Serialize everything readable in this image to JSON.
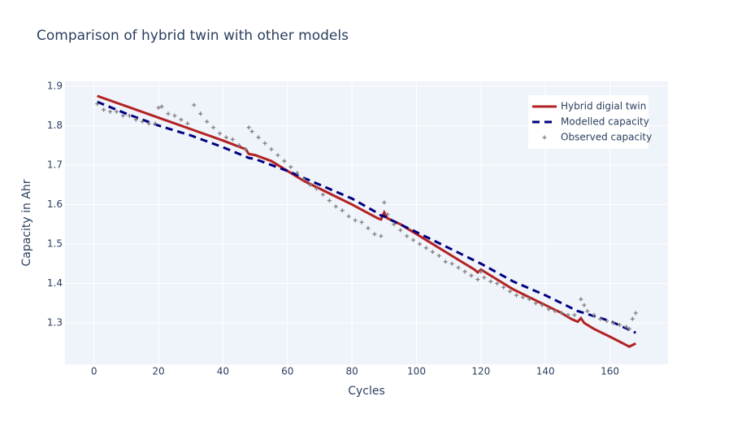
{
  "chart_data": {
    "type": "line",
    "title": "Comparison of hybrid twin with other models",
    "x_label": "Cycles",
    "y_label": "Capacity in Ahr",
    "xlim": [
      -9,
      178
    ],
    "ylim": [
      1.195,
      1.912
    ],
    "xticks": [
      0,
      20,
      40,
      60,
      80,
      100,
      120,
      140,
      160
    ],
    "yticks": [
      1.3,
      1.4,
      1.5,
      1.6,
      1.7,
      1.8,
      1.9
    ],
    "grid": true,
    "legend": "top-right",
    "series": [
      {
        "name": "Hybrid digial twin",
        "color": "#b22222",
        "mode": "lines",
        "line_style": "solid",
        "x": [
          1,
          20,
          40,
          47,
          48,
          50,
          55,
          60,
          65,
          70,
          75,
          80,
          85,
          88,
          89,
          90,
          91,
          95,
          100,
          105,
          110,
          115,
          118,
          119,
          120,
          121,
          125,
          130,
          135,
          140,
          145,
          148,
          150,
          151,
          152,
          155,
          160,
          166,
          168
        ],
        "values": [
          1.875,
          1.82,
          1.762,
          1.74,
          1.728,
          1.725,
          1.71,
          1.685,
          1.66,
          1.64,
          1.62,
          1.6,
          1.578,
          1.565,
          1.562,
          1.58,
          1.565,
          1.55,
          1.525,
          1.5,
          1.475,
          1.45,
          1.435,
          1.428,
          1.435,
          1.43,
          1.41,
          1.385,
          1.365,
          1.345,
          1.325,
          1.31,
          1.303,
          1.312,
          1.3,
          1.285,
          1.265,
          1.24,
          1.248
        ]
      },
      {
        "name": "Modelled capacity",
        "color": "#000080",
        "mode": "lines",
        "line_style": "dash",
        "x": [
          1,
          10,
          20,
          30,
          40,
          48,
          50,
          60,
          70,
          80,
          88,
          89,
          90,
          91,
          100,
          110,
          120,
          130,
          140,
          150,
          160,
          168
        ],
        "values": [
          1.86,
          1.83,
          1.8,
          1.775,
          1.745,
          1.718,
          1.715,
          1.685,
          1.65,
          1.615,
          1.578,
          1.572,
          1.57,
          1.565,
          1.53,
          1.49,
          1.45,
          1.405,
          1.37,
          1.33,
          1.305,
          1.275
        ]
      },
      {
        "name": "Observed capacity",
        "color": "#808080",
        "mode": "markers",
        "symbol": "cross",
        "x": [
          1,
          3,
          5,
          7,
          9,
          11,
          13,
          15,
          17,
          19,
          20,
          21,
          23,
          25,
          27,
          29,
          31,
          33,
          35,
          37,
          39,
          41,
          43,
          45,
          47,
          48,
          49,
          51,
          53,
          55,
          57,
          59,
          61,
          63,
          65,
          67,
          69,
          71,
          73,
          75,
          77,
          79,
          81,
          83,
          85,
          87,
          89,
          90,
          91,
          93,
          95,
          97,
          99,
          101,
          103,
          105,
          107,
          109,
          111,
          113,
          115,
          117,
          119,
          120,
          121,
          123,
          125,
          127,
          129,
          131,
          133,
          135,
          137,
          139,
          141,
          143,
          145,
          147,
          149,
          151,
          152,
          153,
          155,
          157,
          159,
          161,
          163,
          165,
          166,
          167,
          168
        ],
        "values": [
          1.855,
          1.84,
          1.835,
          1.835,
          1.825,
          1.825,
          1.815,
          1.81,
          1.805,
          1.805,
          1.845,
          1.848,
          1.83,
          1.825,
          1.815,
          1.805,
          1.852,
          1.83,
          1.81,
          1.795,
          1.78,
          1.77,
          1.765,
          1.75,
          1.74,
          1.795,
          1.785,
          1.77,
          1.755,
          1.74,
          1.725,
          1.71,
          1.695,
          1.68,
          1.665,
          1.65,
          1.64,
          1.625,
          1.61,
          1.595,
          1.585,
          1.57,
          1.56,
          1.555,
          1.54,
          1.525,
          1.52,
          1.605,
          1.575,
          1.55,
          1.535,
          1.52,
          1.51,
          1.5,
          1.49,
          1.48,
          1.47,
          1.455,
          1.45,
          1.44,
          1.43,
          1.42,
          1.41,
          1.43,
          1.415,
          1.405,
          1.4,
          1.39,
          1.38,
          1.37,
          1.365,
          1.36,
          1.35,
          1.345,
          1.335,
          1.33,
          1.325,
          1.32,
          1.32,
          1.36,
          1.345,
          1.33,
          1.32,
          1.31,
          1.305,
          1.3,
          1.295,
          1.29,
          1.285,
          1.31,
          1.325
        ]
      }
    ]
  }
}
